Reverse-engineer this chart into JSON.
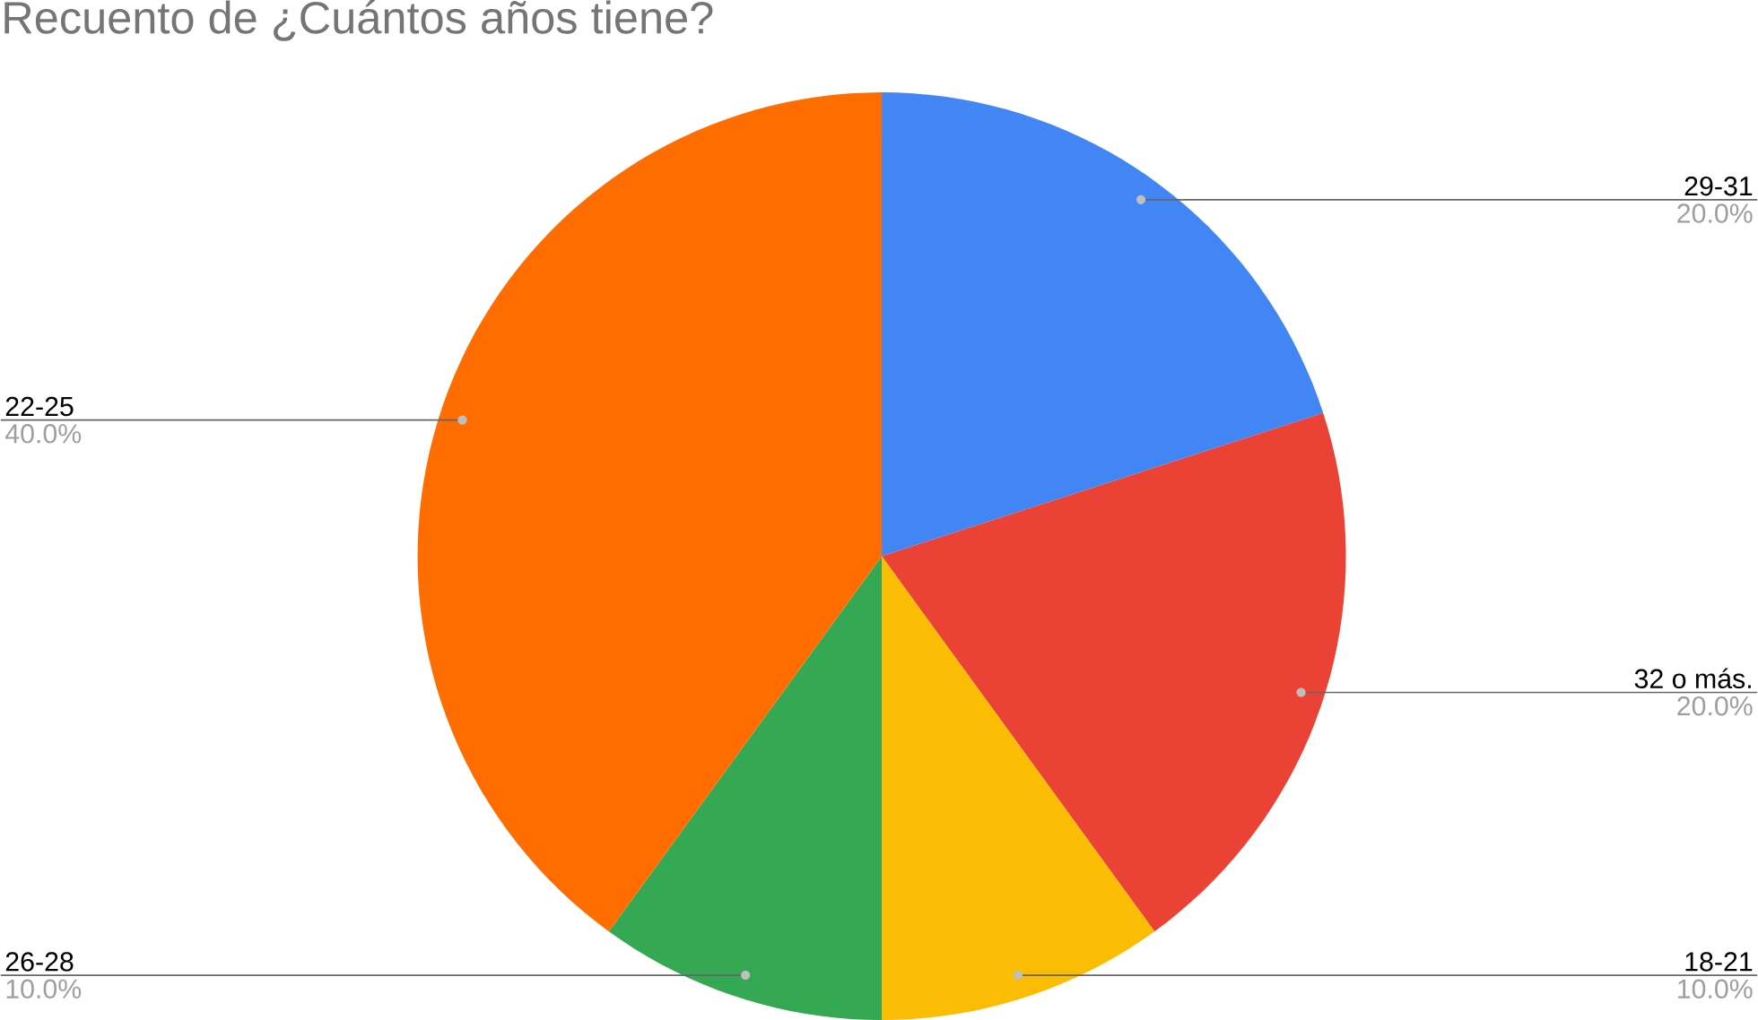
{
  "chart_data": {
    "type": "pie",
    "title": "Recuento de ¿Cuántos años tiene?",
    "categories": [
      "29-31",
      "32 o más.",
      "18-21",
      "26-28",
      "22-25"
    ],
    "values": [
      20,
      20,
      10,
      10,
      40
    ],
    "value_labels": [
      "20.0%",
      "20.0%",
      "10.0%",
      "10.0%",
      "40.0%"
    ],
    "colors": [
      "#4285f4",
      "#ea4335",
      "#fbbc04",
      "#34a853",
      "#ff6d01"
    ]
  }
}
